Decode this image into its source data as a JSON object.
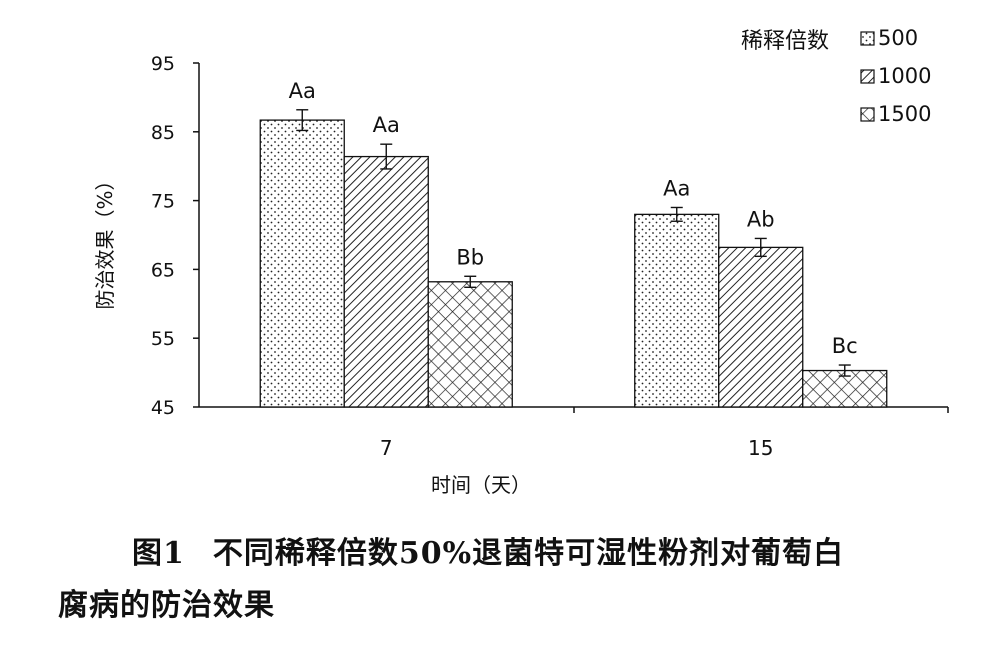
{
  "chart_data": {
    "type": "bar",
    "xlabel": "时间（天）",
    "ylabel": "防治效果（%）",
    "ylim": [
      45,
      95
    ],
    "yticks": [
      45,
      55,
      65,
      75,
      85,
      95
    ],
    "categories": [
      "7",
      "15"
    ],
    "legend_title": "稀释倍数",
    "legend_position": "top-right",
    "grid": false,
    "series": [
      {
        "name": "500",
        "pattern": "dots",
        "values": [
          86.7,
          73.0
        ],
        "errors": [
          1.5,
          1.0
        ],
        "labels": [
          "Aa",
          "Aa"
        ]
      },
      {
        "name": "1000",
        "pattern": "diagonal",
        "values": [
          81.4,
          68.2
        ],
        "errors": [
          1.8,
          1.3
        ],
        "labels": [
          "Aa",
          "Ab"
        ]
      },
      {
        "name": "1500",
        "pattern": "crosshatch",
        "values": [
          63.2,
          50.3
        ],
        "errors": [
          0.8,
          0.8
        ],
        "labels": [
          "Bb",
          "Bc"
        ]
      }
    ]
  },
  "caption": {
    "figure_number": "图1",
    "text_line1": "不同稀释倍数50%退菌特可湿性粉剂对葡萄白",
    "text_line2": "腐病的防治效果"
  }
}
